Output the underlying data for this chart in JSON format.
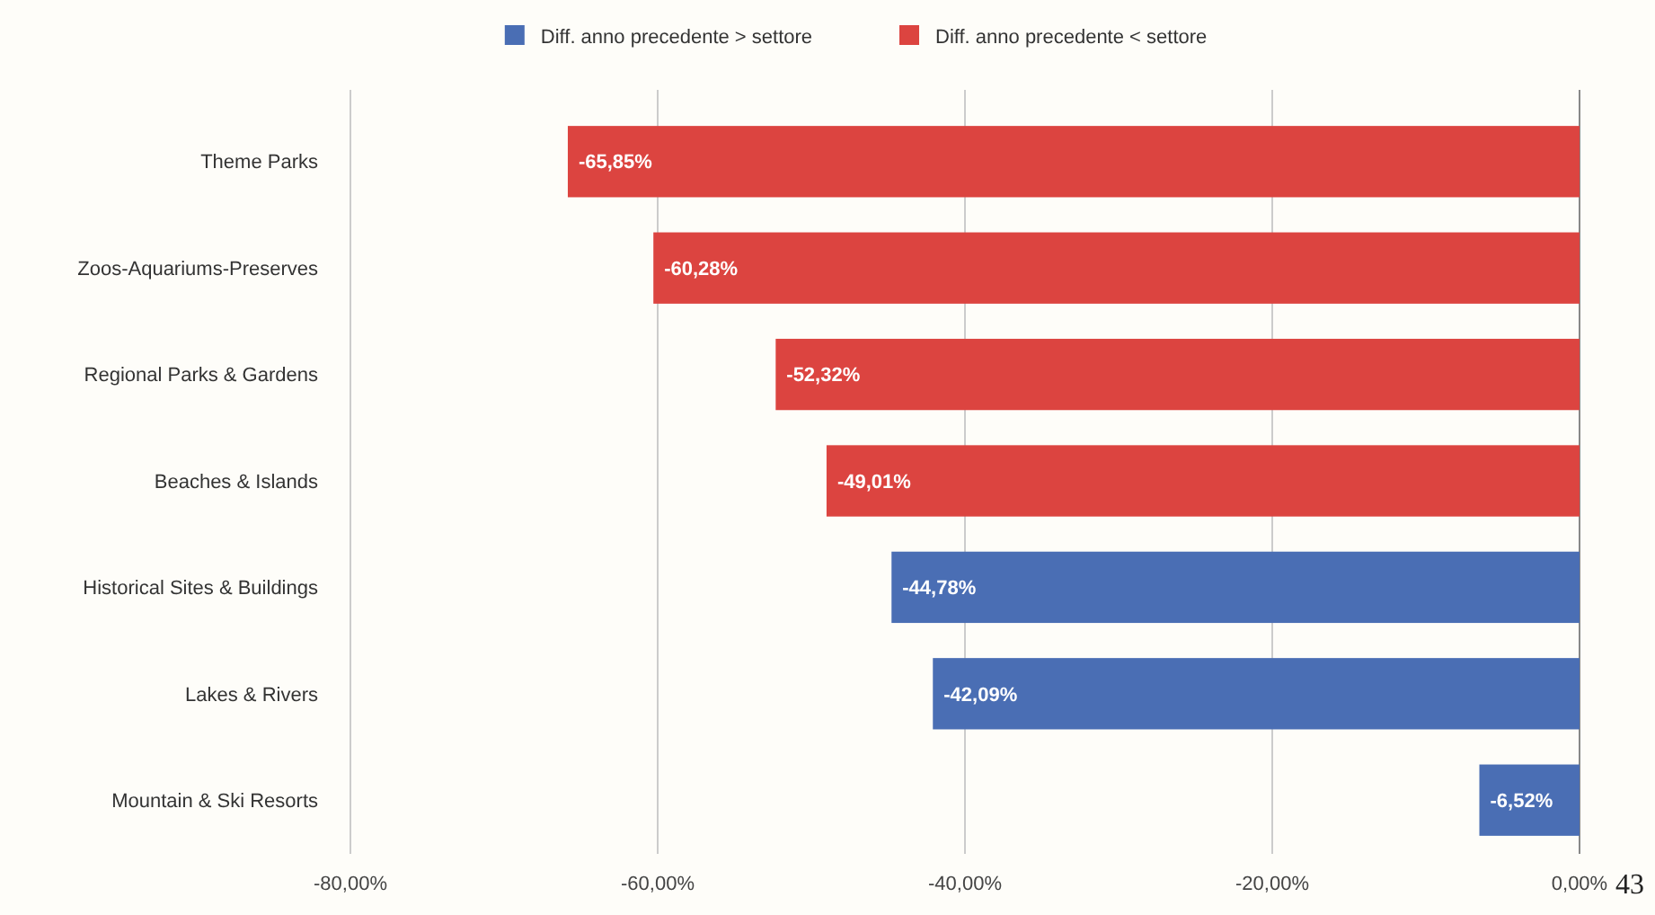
{
  "chart_data": {
    "type": "bar",
    "orientation": "horizontal",
    "categories": [
      "Theme Parks",
      "Zoos-Aquariums-Preserves",
      "Regional Parks & Gardens",
      "Beaches & Islands",
      "Historical Sites & Buildings",
      "Lakes & Rivers",
      "Mountain & Ski Resorts"
    ],
    "series": [
      {
        "name": "Diff. anno precedente > settore",
        "color": "#4a6eb4",
        "values": [
          null,
          null,
          null,
          null,
          -44.78,
          -42.09,
          -6.52
        ],
        "value_labels": [
          null,
          null,
          null,
          null,
          "-44,78%",
          "-42,09%",
          "-6,52%"
        ]
      },
      {
        "name": "Diff. anno precedente < settore",
        "color": "#dc4440",
        "values": [
          -65.85,
          -60.28,
          -52.32,
          -49.01,
          null,
          null,
          null
        ],
        "value_labels": [
          "-65,85%",
          "-60,28%",
          "-52,32%",
          "-49,01%",
          null,
          null,
          null
        ]
      }
    ],
    "xlim": [
      -80,
      0
    ],
    "xticks": [
      {
        "value": -80,
        "label": "-80,00%"
      },
      {
        "value": -60,
        "label": "-60,00%"
      },
      {
        "value": -40,
        "label": "-40,00%"
      },
      {
        "value": -20,
        "label": "-20,00%"
      },
      {
        "value": 0,
        "label": "0,00%"
      }
    ],
    "grid": "x",
    "legend": "top",
    "annotations": [
      "43"
    ]
  }
}
